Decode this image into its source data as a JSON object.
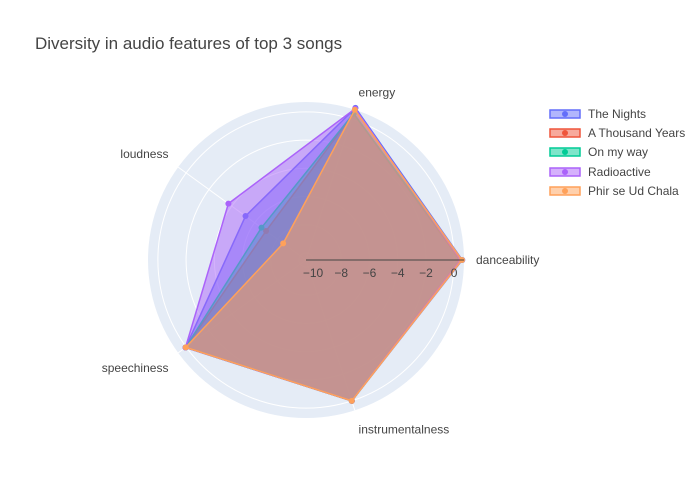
{
  "colors": {
    "background": "#ffffff",
    "polar_background": "#e5ecf6",
    "grid": "#ffffff",
    "text": "#444444"
  },
  "chart_data": {
    "type": "radar",
    "title": "Diversity in audio features of top 3 songs",
    "axes": [
      "danceability",
      "energy",
      "loudness",
      "speechiness",
      "instrumentalness"
    ],
    "radial_range": [
      -10.5,
      0.7
    ],
    "radial_ticks": [
      -10,
      -8,
      -6,
      -4,
      -2,
      0
    ],
    "radial_tick_labels": [
      "−10",
      "−8",
      "−6",
      "−4",
      "−2",
      "0"
    ],
    "grid": true,
    "legend_position": "top-right",
    "series": [
      {
        "name": "The Nights",
        "values": [
          0.58,
          0.84,
          -5.2,
          0.05,
          0.0
        ],
        "color": "#636efa"
      },
      {
        "name": "A Thousand Years",
        "values": [
          0.42,
          0.41,
          -7.0,
          0.03,
          0.0
        ],
        "color": "#ef553b"
      },
      {
        "name": "On my way",
        "values": [
          0.5,
          0.42,
          -6.6,
          0.05,
          0.0
        ],
        "color": "#00cc96"
      },
      {
        "name": "Radioactive",
        "values": [
          0.45,
          0.78,
          -3.7,
          0.06,
          0.0
        ],
        "color": "#ab63fa"
      },
      {
        "name": "Phir se Ud Chala",
        "values": [
          0.56,
          0.7,
          -8.5,
          0.04,
          0.0
        ],
        "color": "#ffa15a"
      }
    ]
  }
}
